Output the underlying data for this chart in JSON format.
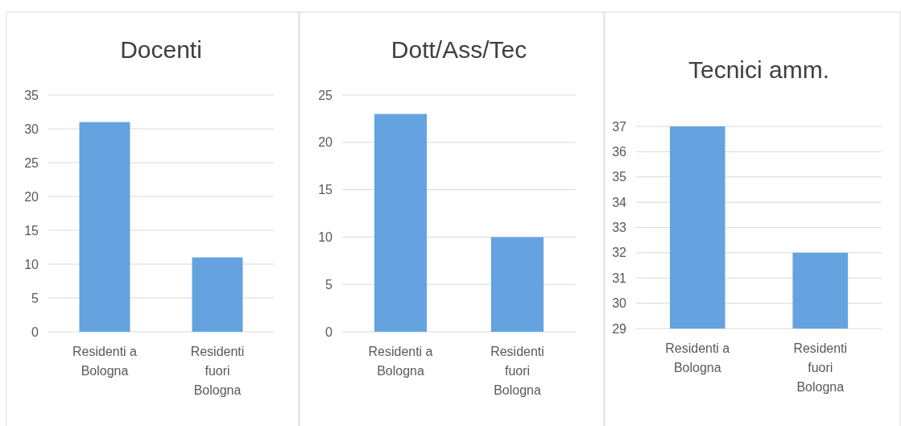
{
  "chart_data": [
    {
      "type": "bar",
      "title": "Docenti",
      "categories": [
        "Residenti a Bologna",
        "Residenti fuori Bologna"
      ],
      "values": [
        31,
        11
      ],
      "color": "#65a3e0",
      "ylim": [
        0,
        35
      ],
      "yticks": [
        0,
        5,
        10,
        15,
        20,
        25,
        30,
        35
      ],
      "grid": "y"
    },
    {
      "type": "bar",
      "title": "Dott/Ass/Tec",
      "categories": [
        "Residenti a Bologna",
        "Residenti fuori Bologna"
      ],
      "values": [
        23,
        10
      ],
      "color": "#65a3e0",
      "ylim": [
        0,
        25
      ],
      "yticks": [
        0,
        5,
        10,
        15,
        20,
        25
      ],
      "grid": "y"
    },
    {
      "type": "bar",
      "title": "Tecnici amm.",
      "categories": [
        "Residenti a Bologna",
        "Residenti fuori Bologna"
      ],
      "values": [
        37,
        32
      ],
      "color": "#65a3e0",
      "ylim": [
        29,
        37
      ],
      "yticks": [
        29,
        30,
        31,
        32,
        33,
        34,
        35,
        36,
        37
      ],
      "grid": "y"
    }
  ]
}
